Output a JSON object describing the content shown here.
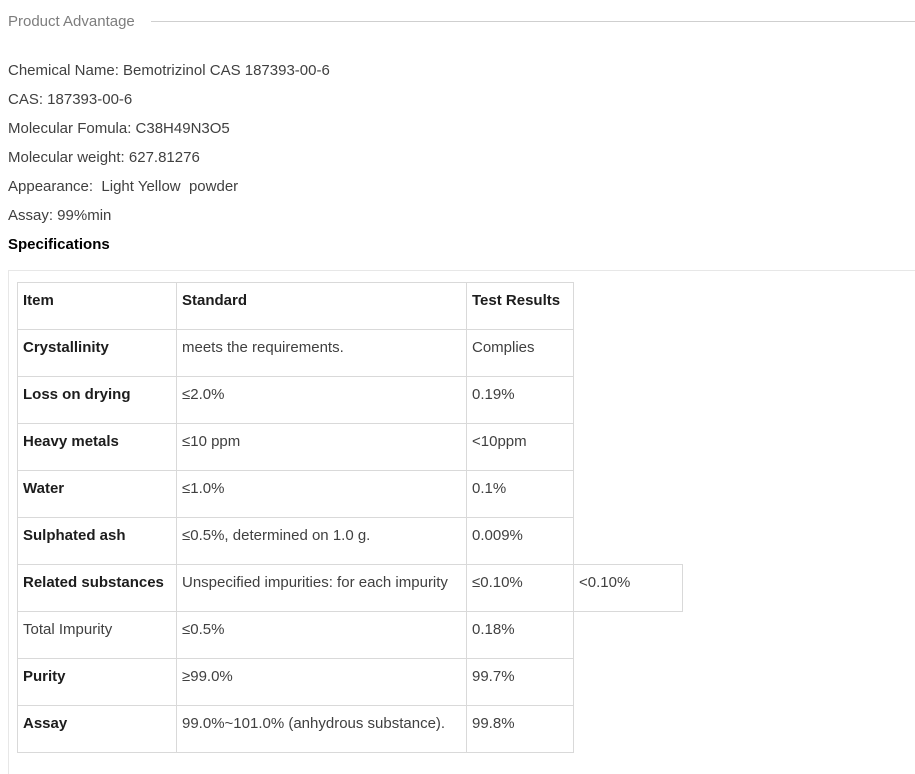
{
  "page": {
    "section_title": "Product Advantage",
    "info_lines": [
      "Chemical Name: Bemotrizinol CAS 187393-00-6",
      "CAS: 187393-00-6",
      "Molecular Fomula: C38H49N3O5",
      "Molecular weight: 627.81276",
      "Appearance:  Light Yellow  powder",
      "Assay: 99%min"
    ],
    "specs_heading": "Specifications"
  },
  "table": {
    "headers": [
      "Item",
      "Standard",
      "Test Results"
    ],
    "rows": [
      {
        "item": "Crystallinity",
        "item_bold": true,
        "standard": "meets the requirements.",
        "result": "Complies",
        "extra": ""
      },
      {
        "item": "Loss on drying",
        "item_bold": true,
        "standard": "≤2.0%",
        "result": "0.19%",
        "extra": ""
      },
      {
        "item": "Heavy metals",
        "item_bold": true,
        "standard": "≤10 ppm",
        "result": "<10ppm",
        "extra": ""
      },
      {
        "item": "Water",
        "item_bold": true,
        "standard": "≤1.0%",
        "result": "0.1%",
        "extra": ""
      },
      {
        "item": "Sulphated ash",
        "item_bold": true,
        "standard": "≤0.5%, determined on 1.0 g.",
        "result": "0.009%",
        "extra": ""
      },
      {
        "item": "Related substances",
        "item_bold": true,
        "standard": "Unspecified impurities: for each impurity",
        "result": "≤0.10%",
        "extra": "<0.10%"
      },
      {
        "item": "Total Impurity",
        "item_bold": false,
        "standard": "≤0.5%",
        "result": "0.18%",
        "extra": ""
      },
      {
        "item": "Purity",
        "item_bold": true,
        "standard": "≥99.0%",
        "result": "99.7%",
        "extra": ""
      },
      {
        "item": "Assay",
        "item_bold": true,
        "standard": "99.0%~101.0% (anhydrous substance).",
        "result": "99.8%",
        "extra": ""
      }
    ]
  },
  "colors": {
    "section_title": "#7d7d7d",
    "rule": "#cfcfcf",
    "body_text": "#404040",
    "table_border": "#d9d9d9",
    "panel_border": "#e7e7e7",
    "background": "#ffffff"
  }
}
